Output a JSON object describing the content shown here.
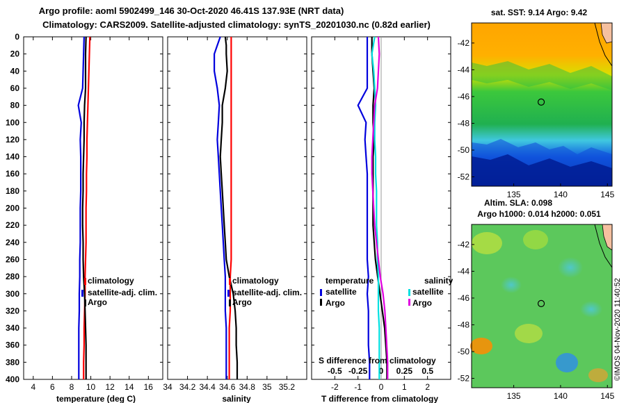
{
  "header": {
    "title_line1": "Argo profile: aoml 5902499_146 30-Oct-2020 46.41S 137.93E (NRT data)",
    "title_line2": "Climatology: CARS2009. Satellite-adjusted climatology: synTS_20201030.nc (0.82d earlier)"
  },
  "colors": {
    "climatology": "#ff0000",
    "satellite_adj": "#0000dd",
    "argo": "#000000",
    "temp_diff_sat": "#0000dd",
    "sal_diff_sat": "#00e0e0",
    "sal_diff_argo": "#e000e0"
  },
  "depth_axis": {
    "ylim": [
      0,
      400
    ],
    "ticks": [
      0,
      20,
      40,
      60,
      80,
      100,
      120,
      140,
      160,
      180,
      200,
      220,
      240,
      260,
      280,
      300,
      320,
      340,
      360,
      380,
      400
    ]
  },
  "chart_data": [
    {
      "id": "temperature",
      "type": "line",
      "xlabel": "temperature (deg C)",
      "xlim": [
        3,
        17.5
      ],
      "xticks": [
        4,
        6,
        8,
        10,
        12,
        14,
        16
      ],
      "ylabel": "depth",
      "ylim": [
        0,
        400
      ],
      "legend": {
        "items": [
          "climatology",
          "satellite-adj. clim.",
          "Argo"
        ],
        "placement": "middle-right"
      },
      "series": [
        {
          "name": "climatology",
          "color": "#ff0000",
          "depth": [
            0,
            20,
            40,
            60,
            80,
            100,
            120,
            140,
            160,
            180,
            200,
            220,
            240,
            260,
            280,
            300,
            320,
            340,
            360,
            380,
            400
          ],
          "values": [
            9.9,
            9.85,
            9.8,
            9.75,
            9.7,
            9.65,
            9.6,
            9.6,
            9.55,
            9.55,
            9.5,
            9.5,
            9.5,
            9.45,
            9.4,
            9.4,
            9.35,
            9.3,
            9.3,
            9.25,
            9.25
          ]
        },
        {
          "name": "satellite-adj. clim.",
          "color": "#0000dd",
          "depth": [
            0,
            20,
            40,
            60,
            80,
            100,
            120,
            140,
            160,
            180,
            200,
            220,
            240,
            260,
            280,
            300,
            320,
            340,
            360,
            380,
            400
          ],
          "values": [
            9.3,
            9.25,
            9.2,
            9.15,
            8.7,
            9.0,
            8.9,
            8.95,
            8.95,
            8.95,
            8.9,
            8.9,
            8.9,
            8.85,
            8.85,
            8.8,
            8.8,
            8.75,
            8.75,
            8.75,
            8.75
          ]
        },
        {
          "name": "Argo",
          "color": "#000000",
          "depth": [
            0,
            20,
            40,
            60,
            80,
            100,
            120,
            140,
            160,
            180,
            200,
            220,
            240,
            260,
            280,
            300,
            320,
            340,
            360,
            380,
            400
          ],
          "values": [
            9.5,
            9.45,
            9.45,
            9.45,
            9.35,
            9.3,
            9.3,
            9.25,
            9.2,
            9.2,
            9.15,
            9.15,
            9.2,
            9.2,
            9.25,
            9.35,
            9.4,
            9.45,
            9.5,
            9.5,
            9.5
          ]
        }
      ]
    },
    {
      "id": "salinity",
      "type": "line",
      "xlabel": "salinity",
      "xlim": [
        34.0,
        35.4
      ],
      "xticks": [
        34,
        34.2,
        34.4,
        34.6,
        34.8,
        35,
        35.2
      ],
      "ylabel": "depth",
      "ylim": [
        0,
        400
      ],
      "legend": {
        "items": [
          "climatology",
          "satellite-adj. clim.",
          "Argo"
        ],
        "placement": "middle-right"
      },
      "series": [
        {
          "name": "climatology",
          "color": "#ff0000",
          "depth": [
            0,
            20,
            40,
            60,
            80,
            100,
            120,
            140,
            160,
            180,
            200,
            220,
            240,
            260,
            280,
            300,
            320,
            340,
            360,
            380,
            400
          ],
          "values": [
            34.64,
            34.64,
            34.64,
            34.64,
            34.64,
            34.64,
            34.64,
            34.64,
            34.64,
            34.64,
            34.64,
            34.64,
            34.64,
            34.64,
            34.63,
            34.63,
            34.63,
            34.62,
            34.62,
            34.62,
            34.62
          ]
        },
        {
          "name": "satellite-adj. clim.",
          "color": "#0000dd",
          "depth": [
            0,
            10,
            20,
            40,
            60,
            80,
            100,
            120,
            140,
            160,
            180,
            200,
            220,
            240,
            260,
            280,
            300,
            320,
            340,
            360,
            380,
            400
          ],
          "values": [
            34.53,
            34.5,
            34.47,
            34.47,
            34.5,
            34.52,
            34.51,
            34.5,
            34.51,
            34.52,
            34.53,
            34.54,
            34.55,
            34.56,
            34.57,
            34.58,
            34.58,
            34.58,
            34.59,
            34.59,
            34.59,
            34.59
          ]
        },
        {
          "name": "Argo",
          "color": "#000000",
          "depth": [
            0,
            10,
            20,
            40,
            60,
            80,
            100,
            120,
            140,
            160,
            180,
            200,
            220,
            240,
            260,
            280,
            300,
            320,
            340,
            360,
            380,
            400
          ],
          "values": [
            34.58,
            34.59,
            34.59,
            34.6,
            34.58,
            34.55,
            34.55,
            34.54,
            34.53,
            34.54,
            34.55,
            34.56,
            34.57,
            34.58,
            34.59,
            34.62,
            34.66,
            34.68,
            34.69,
            34.69,
            34.7,
            34.7
          ]
        }
      ]
    },
    {
      "id": "differences",
      "type": "line",
      "xlabel": "T difference from climatology",
      "xlim": [
        -3,
        3
      ],
      "xticks": [
        -2,
        -1,
        0,
        1,
        2
      ],
      "xlabel2": "S difference from climatology",
      "xticks2": [
        -0.5,
        -0.25,
        0,
        0.25,
        0.5
      ],
      "ylabel": "depth",
      "ylim": [
        0,
        400
      ],
      "legend": {
        "temperature_title": "temperature",
        "salinity_title": "salinity",
        "items": [
          "satellite",
          "Argo"
        ]
      },
      "series": [
        {
          "name": "T satellite",
          "color": "#0000dd",
          "depth": [
            0,
            20,
            40,
            60,
            80,
            100,
            120,
            140,
            160,
            180,
            200,
            220,
            240,
            260,
            280,
            300,
            320,
            340,
            360,
            380,
            400
          ],
          "values": [
            -0.6,
            -0.6,
            -0.6,
            -0.6,
            -1.0,
            -0.65,
            -0.7,
            -0.65,
            -0.6,
            -0.6,
            -0.6,
            -0.6,
            -0.6,
            -0.6,
            -0.55,
            -0.6,
            -0.55,
            -0.55,
            -0.55,
            -0.5,
            -0.5
          ]
        },
        {
          "name": "T Argo",
          "color": "#000000",
          "depth": [
            0,
            20,
            40,
            60,
            80,
            100,
            120,
            140,
            160,
            180,
            200,
            220,
            240,
            260,
            280,
            300,
            320,
            340,
            360,
            380,
            400
          ],
          "values": [
            -0.4,
            -0.4,
            -0.35,
            -0.3,
            -0.35,
            -0.35,
            -0.3,
            -0.35,
            -0.35,
            -0.35,
            -0.35,
            -0.35,
            -0.3,
            -0.25,
            -0.15,
            -0.05,
            0.05,
            0.15,
            0.2,
            0.25,
            0.25
          ]
        },
        {
          "name": "S satellite",
          "color": "#00e0e0",
          "depth": [
            0,
            20,
            40,
            60,
            80,
            100,
            120,
            140,
            160,
            180,
            200,
            220,
            240,
            260,
            280,
            300,
            320,
            340,
            360,
            380,
            400
          ],
          "values": [
            -0.07,
            -0.1,
            -0.08,
            -0.07,
            -0.06,
            -0.07,
            -0.07,
            -0.06,
            -0.06,
            -0.05,
            -0.05,
            -0.05,
            -0.04,
            -0.04,
            -0.03,
            -0.03,
            -0.03,
            -0.02,
            -0.02,
            -0.02,
            -0.02
          ]
        },
        {
          "name": "S Argo",
          "color": "#e000e0",
          "depth": [
            0,
            20,
            40,
            60,
            80,
            100,
            120,
            140,
            160,
            180,
            200,
            220,
            240,
            260,
            280,
            300,
            320,
            340,
            360,
            380,
            400
          ],
          "values": [
            -0.03,
            -0.02,
            -0.03,
            -0.04,
            -0.07,
            -0.08,
            -0.09,
            -0.1,
            -0.1,
            -0.09,
            -0.08,
            -0.07,
            -0.05,
            -0.03,
            -0.01,
            0.02,
            0.04,
            0.05,
            0.06,
            0.07,
            0.07
          ]
        }
      ]
    }
  ],
  "maps": {
    "sst": {
      "title": "sat. SST: 9.14 Argo: 9.42",
      "yticks": [
        -42,
        -44,
        -46,
        -48,
        -50,
        -52
      ],
      "xticks": [
        135,
        140,
        145
      ],
      "lon_range": [
        130.5,
        145.5
      ],
      "lat_range": [
        -40.5,
        -52.7
      ],
      "argo_marker": {
        "lon": 137.93,
        "lat": -46.41
      }
    },
    "sla": {
      "title": "Altim. SLA: 0.098",
      "subtitle": "Argo h1000: 0.014 h2000: 0.051",
      "yticks": [
        -42,
        -44,
        -46,
        -48,
        -50,
        -52
      ],
      "xticks": [
        135,
        140,
        145
      ],
      "lon_range": [
        130.5,
        145.5
      ],
      "lat_range": [
        -40.5,
        -52.7
      ],
      "argo_marker": {
        "lon": 137.93,
        "lat": -46.41
      }
    }
  },
  "credit": "©IMOS 04-Nov-2020 11:40:52"
}
